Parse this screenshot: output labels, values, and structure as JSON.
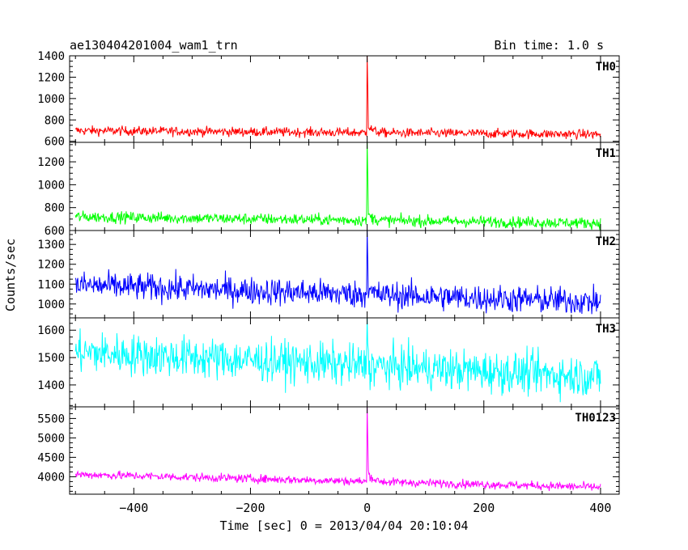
{
  "chart_data": {
    "type": "line",
    "title": "ae130404201004_wam1_trn",
    "subtitle": "Bin time: 1.0 s",
    "xlabel": "Time [sec] 0 = 2013/04/04 20:10:04",
    "ylabel": "Counts/sec",
    "xlim": [
      -510,
      432
    ],
    "x_ticks": [
      -400,
      -200,
      0,
      200,
      400
    ],
    "x_tick_labels": [
      "−400",
      "−200",
      "0",
      "200",
      "400"
    ],
    "x_start": -500,
    "x_end": 400,
    "grid": false,
    "panels": [
      {
        "name": "TH0",
        "color": "#ff0000",
        "ylim": [
          590,
          1400
        ],
        "y_ticks": [
          600,
          800,
          1000,
          1200,
          1400
        ],
        "y_tick_labels": [
          "600",
          "800",
          "1000",
          "1200",
          "1400"
        ],
        "baseline_start": 700,
        "baseline_end": 665,
        "noise": 22,
        "spike_peak": 1450,
        "tail_level": 780,
        "tail_decay_s": 8
      },
      {
        "name": "TH1",
        "color": "#00ff00",
        "ylim": [
          600,
          1370
        ],
        "y_ticks": [
          600,
          800,
          1000,
          1200
        ],
        "y_tick_labels": [
          "600",
          "800",
          "1000",
          "1200"
        ],
        "baseline_start": 720,
        "baseline_end": 665,
        "noise": 25,
        "spike_peak": 1400,
        "tail_level": 780,
        "tail_decay_s": 8
      },
      {
        "name": "TH2",
        "color": "#0000ff",
        "ylim": [
          930,
          1370
        ],
        "y_ticks": [
          1000,
          1100,
          1200,
          1300
        ],
        "y_tick_labels": [
          "1000",
          "1100",
          "1200",
          "1300"
        ],
        "baseline_start": 1095,
        "baseline_end": 1010,
        "noise": 35,
        "spike_peak": 1380,
        "tail_level": 1120,
        "tail_decay_s": 6
      },
      {
        "name": "TH3",
        "color": "#00ffff",
        "ylim": [
          1320,
          1645
        ],
        "y_ticks": [
          1400,
          1500,
          1600
        ],
        "y_tick_labels": [
          "1400",
          "1500",
          "1600"
        ],
        "baseline_start": 1520,
        "baseline_end": 1430,
        "noise": 38,
        "spike_peak": 1650,
        "tail_level": 1510,
        "tail_decay_s": 5
      },
      {
        "name": "TH0123",
        "color": "#ff00ff",
        "ylim": [
          3550,
          5800
        ],
        "y_ticks": [
          4000,
          4500,
          5000,
          5500
        ],
        "y_tick_labels": [
          "4000",
          "4500",
          "5000",
          "5500"
        ],
        "baseline_start": 4060,
        "baseline_end": 3730,
        "noise": 55,
        "spike_peak": 5800,
        "tail_level": 4350,
        "tail_decay_s": 8
      }
    ]
  }
}
